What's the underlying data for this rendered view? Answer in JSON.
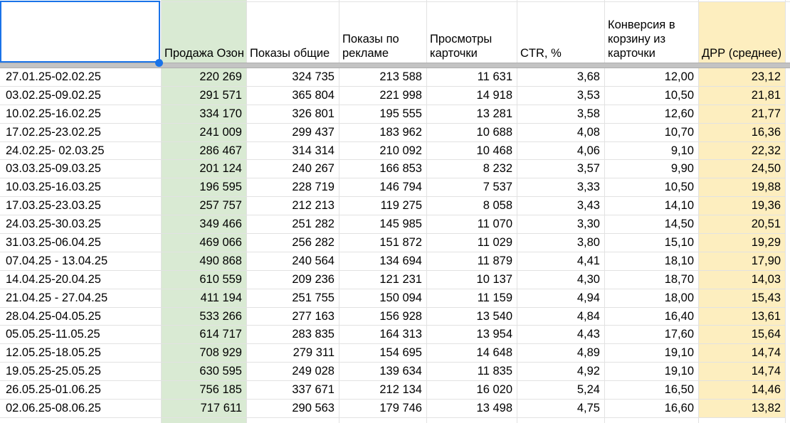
{
  "app": {
    "kind": "spreadsheet-grid"
  },
  "selection": {
    "value": ""
  },
  "table": {
    "columns": [
      {
        "key": "period",
        "label": "",
        "align": "left"
      },
      {
        "key": "prodazha-ozon",
        "label": "Продажа Озон",
        "align": "right",
        "bg": "green"
      },
      {
        "key": "pokazy-obshchie",
        "label": "Показы общие",
        "align": "right"
      },
      {
        "key": "pokazy-po-reklame",
        "label": "Показы по рекламе",
        "align": "right"
      },
      {
        "key": "prosmotry-kartochki",
        "label": "Просмотры карточки",
        "align": "right"
      },
      {
        "key": "ctr",
        "label": "CTR, %",
        "align": "right"
      },
      {
        "key": "konversiya-v-korzinu",
        "label": "Конверсия в корзину из карточки",
        "align": "right"
      },
      {
        "key": "drr",
        "label": "ДРР (среднее)",
        "align": "right",
        "bg": "yellow"
      }
    ],
    "rows": [
      [
        "27.01.25-02.02.25",
        "220 269",
        "324 735",
        "213 588",
        "11 631",
        "3,68",
        "12,00",
        "23,12"
      ],
      [
        "03.02.25-09.02.25",
        "291 571",
        "365 804",
        "221 998",
        "14 918",
        "3,53",
        "10,50",
        "21,81"
      ],
      [
        "10.02.25-16.02.25",
        "334 170",
        "326 801",
        "195 555",
        "13 281",
        "3,58",
        "12,60",
        "21,77"
      ],
      [
        "17.02.25-23.02.25",
        "241 009",
        "299 437",
        "183 962",
        "10 688",
        "4,08",
        "10,70",
        "16,36"
      ],
      [
        "24.02.25- 02.03.25",
        "286 467",
        "314 314",
        "210 092",
        "10 468",
        "4,06",
        "9,10",
        "22,32"
      ],
      [
        "03.03.25-09.03.25",
        "201 124",
        "240 267",
        "166 853",
        "8 232",
        "3,57",
        "9,90",
        "24,50"
      ],
      [
        "10.03.25-16.03.25",
        "196 595",
        "228 719",
        "146 794",
        "7 537",
        "3,33",
        "10,50",
        "19,88"
      ],
      [
        "17.03.25-23.03.25",
        "257 757",
        "212 213",
        "119 275",
        "8 058",
        "3,43",
        "14,10",
        "19,36"
      ],
      [
        "24.03.25-30.03.25",
        "349 466",
        "251 282",
        "145 985",
        "11 070",
        "3,30",
        "14,50",
        "20,51"
      ],
      [
        "31.03.25-06.04.25",
        "469 066",
        "256 282",
        "151 872",
        "11 029",
        "3,80",
        "15,10",
        "19,29"
      ],
      [
        "07.04.25 - 13.04.25",
        "490 868",
        "240 564",
        "134 694",
        "11 879",
        "4,41",
        "18,10",
        "17,90"
      ],
      [
        "14.04.25-20.04.25",
        "610 559",
        "209 236",
        "121 231",
        "10 137",
        "4,30",
        "18,70",
        "14,03"
      ],
      [
        "21.04.25 - 27.04.25",
        "411 194",
        "251 755",
        "150 094",
        "11 159",
        "4,94",
        "18,00",
        "15,43"
      ],
      [
        "28.04.25-04.05.25",
        "533 266",
        "277 163",
        "156 928",
        "13 540",
        "4,84",
        "16,40",
        "13,61"
      ],
      [
        "05.05.25-11.05.25",
        "614 717",
        "283 835",
        "164 313",
        "13 954",
        "4,43",
        "17,60",
        "15,64"
      ],
      [
        "12.05.25-18.05.25",
        "708 929",
        "279 311",
        "154 695",
        "14 648",
        "4,89",
        "19,10",
        "14,74"
      ],
      [
        "19.05.25-25.05.25",
        "630 595",
        "249 028",
        "139 634",
        "11 835",
        "4,92",
        "19,10",
        "14,74"
      ],
      [
        "26.05.25-01.06.25",
        "756 185",
        "337 671",
        "212 134",
        "16 020",
        "5,24",
        "16,50",
        "14,46"
      ],
      [
        "02.06.25-08.06.25",
        "717 611",
        "290 563",
        "179 746",
        "13 498",
        "4,75",
        "16,60",
        "13,82"
      ]
    ]
  },
  "colors": {
    "green_fill": "#d9ead3",
    "yellow_fill": "#fdeebf",
    "selection_blue": "#1a73e8",
    "gridline": "#e2e2e2",
    "freeze_bar": "#c3c3c3"
  }
}
